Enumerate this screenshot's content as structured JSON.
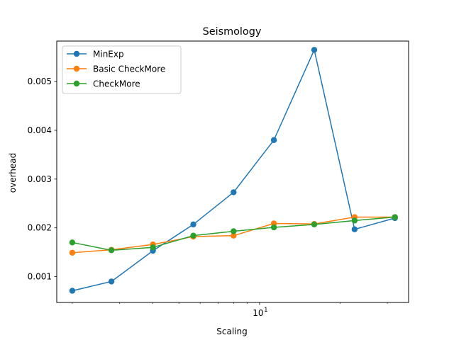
{
  "chart_data": {
    "type": "line",
    "title": "Seismology",
    "xlabel": "Scaling",
    "ylabel": "overhead",
    "x_scale": "log",
    "x": [
      2.0,
      2.8,
      4.0,
      5.66,
      8.0,
      11.31,
      16.0,
      22.63,
      32.0
    ],
    "x_ticks": [
      {
        "value": 10,
        "label": "10",
        "exponent": "1"
      }
    ],
    "xlim": [
      1.75,
      36.0
    ],
    "ylim": [
      0.00047,
      0.00583
    ],
    "y_ticks": [
      {
        "value": 0.001,
        "label": "0.001"
      },
      {
        "value": 0.002,
        "label": "0.002"
      },
      {
        "value": 0.003,
        "label": "0.003"
      },
      {
        "value": 0.004,
        "label": "0.004"
      },
      {
        "value": 0.005,
        "label": "0.005"
      }
    ],
    "grid": false,
    "legend_position": "top-left",
    "series": [
      {
        "name": "MinExp",
        "color": "#1f77b4",
        "values": [
          0.00071,
          0.0009,
          0.00153,
          0.00207,
          0.00273,
          0.0038,
          0.00565,
          0.00197,
          0.0022
        ]
      },
      {
        "name": "Basic CheckMore",
        "color": "#ff7f0e",
        "values": [
          0.00149,
          0.00155,
          0.00166,
          0.00182,
          0.00184,
          0.00209,
          0.00208,
          0.00222,
          0.00222
        ]
      },
      {
        "name": "CheckMore",
        "color": "#2ca02c",
        "values": [
          0.0017,
          0.00154,
          0.0016,
          0.00184,
          0.00193,
          0.00201,
          0.00207,
          0.00215,
          0.00222
        ]
      }
    ]
  }
}
